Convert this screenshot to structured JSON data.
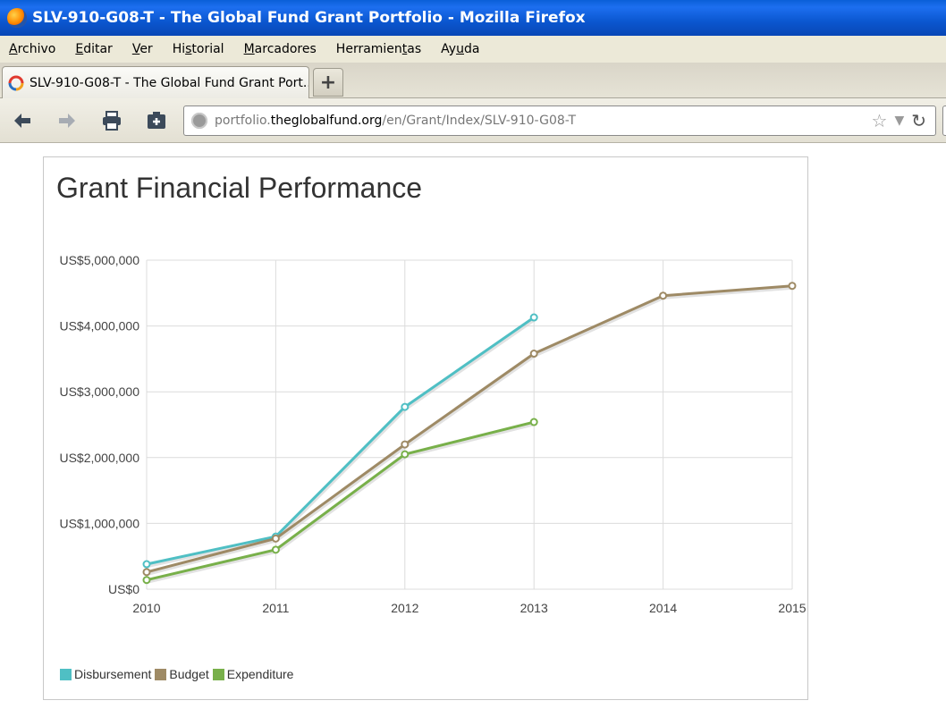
{
  "window": {
    "title": "SLV-910-G08-T - The Global Fund Grant Portfolio - Mozilla Firefox"
  },
  "menu": {
    "items": [
      {
        "label": "Archivo",
        "accel": "A"
      },
      {
        "label": "Editar",
        "accel": "E"
      },
      {
        "label": "Ver",
        "accel": "V"
      },
      {
        "label": "Historial",
        "accel": "s"
      },
      {
        "label": "Marcadores",
        "accel": "M"
      },
      {
        "label": "Herramientas",
        "accel": "t"
      },
      {
        "label": "Ayuda",
        "accel": "u"
      }
    ]
  },
  "tabs": [
    {
      "label": "SLV-910-G08-T - The Global Fund Grant Port..."
    }
  ],
  "newtab_label": "+",
  "url": {
    "prefix": "portfolio.",
    "host": "theglobalfund.org",
    "path": "/en/Grant/Index/SLV-910-G08-T"
  },
  "icons": {
    "back": "back-arrow-icon",
    "forward": "forward-arrow-icon",
    "print": "printer-icon",
    "addon": "addon-icon",
    "star": "star-icon",
    "dropdown": "chevron-down-icon",
    "reload": "reload-icon"
  },
  "colors": {
    "disbursement": "#4fbfc4",
    "budget": "#9e8a65",
    "expenditure": "#78b04a",
    "grid": "#dcdcdc"
  },
  "chart_data": {
    "type": "line",
    "title": "Grant Financial Performance",
    "xlabel": "",
    "ylabel": "",
    "x": [
      "2010",
      "2011",
      "2012",
      "2013",
      "2014",
      "2015"
    ],
    "yticks": [
      "US$0",
      "US$1,000,000",
      "US$2,000,000",
      "US$3,000,000",
      "US$4,000,000",
      "US$5,000,000"
    ],
    "ylim": [
      0,
      5000000
    ],
    "grid": true,
    "legend_position": "bottom-left",
    "series": [
      {
        "name": "Disbursement",
        "values": [
          380000,
          800000,
          2770000,
          4130000,
          null,
          null
        ]
      },
      {
        "name": "Budget",
        "values": [
          260000,
          770000,
          2200000,
          3580000,
          4460000,
          4610000
        ]
      },
      {
        "name": "Expenditure",
        "values": [
          140000,
          600000,
          2050000,
          2540000,
          null,
          null
        ]
      }
    ]
  }
}
